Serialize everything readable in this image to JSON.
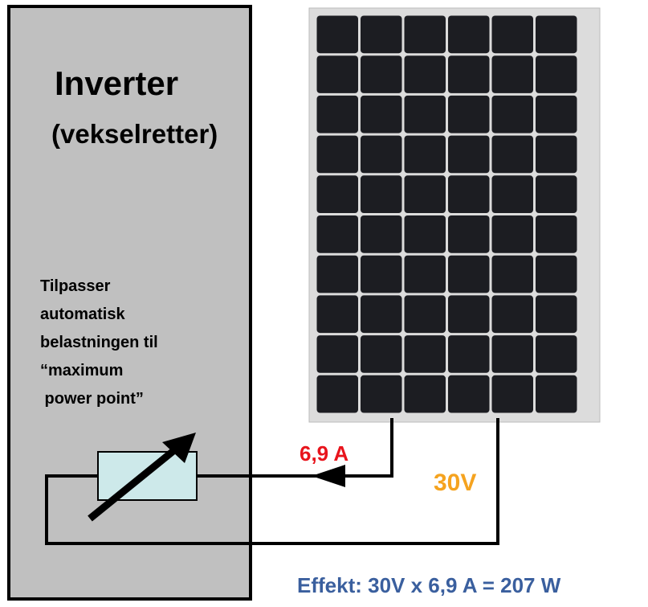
{
  "inverter": {
    "title": "Inverter",
    "subtitle": "(vekselretter)",
    "description": [
      "Tilpasser",
      "automatisk",
      "belastningen til",
      "“maximum",
      " power point”"
    ]
  },
  "current_label": "6,9 A",
  "voltage_label": "30V",
  "power_formula": "Effekt: 30V x 6,9 A = 207 W"
}
